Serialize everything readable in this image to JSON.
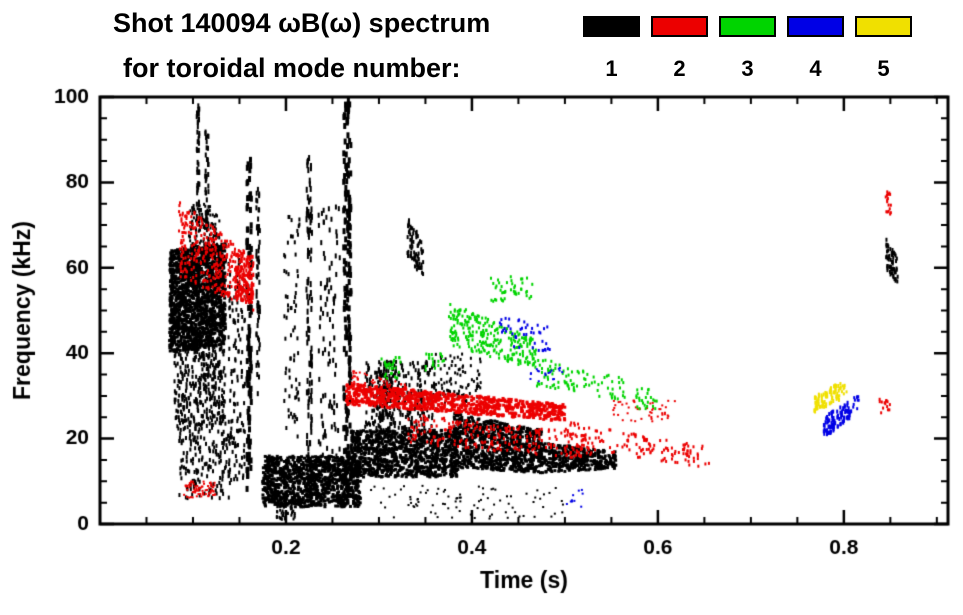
{
  "chart_data": {
    "type": "scatter",
    "title_line1": "Shot 140094 ωB(ω) spectrum",
    "title_line2": "for toroidal mode number:",
    "xlabel": "Time (s)",
    "ylabel": "Frequency (kHz)",
    "xlim": [
      0,
      0.912
    ],
    "ylim": [
      0,
      100
    ],
    "xticks": [
      0.2,
      0.4,
      0.6,
      0.8
    ],
    "xtick_labels": [
      "0.2",
      "0.4",
      "0.6",
      "0.8"
    ],
    "x_minor_step": 0.05,
    "yticks": [
      0,
      20,
      40,
      60,
      80,
      100
    ],
    "ytick_labels": [
      "0",
      "20",
      "40",
      "60",
      "80",
      "100"
    ],
    "y_minor_step": 5,
    "grid": false,
    "legend_position": "top-right",
    "legend": [
      {
        "label": "1",
        "color": "#000000"
      },
      {
        "label": "2",
        "color": "#ec0000"
      },
      {
        "label": "3",
        "color": "#00d400"
      },
      {
        "label": "4",
        "color": "#0000e6"
      },
      {
        "label": "5",
        "color": "#f0e000"
      }
    ],
    "series": [
      {
        "name": "n=1",
        "mode": 1,
        "color": "#000000",
        "clusters": [
          {
            "t": [
              0.075,
              0.135
            ],
            "f0": [
              40,
              64
            ],
            "f1": [
              42,
              66
            ],
            "n": 1600,
            "w": 3,
            "h": 3
          },
          {
            "t": [
              0.08,
              0.135
            ],
            "f0": [
              22,
              42
            ],
            "n": 350,
            "w": 2,
            "h": 4
          },
          {
            "t": [
              0.085,
              0.14
            ],
            "f0": [
              6,
              22
            ],
            "n": 160,
            "w": 2,
            "h": 4
          },
          {
            "t": [
              0.095,
              0.13
            ],
            "f0": [
              64,
              75
            ],
            "n": 120,
            "w": 2,
            "h": 3
          },
          {
            "t": [
              0.104,
              0.107
            ],
            "f0": [
              70,
              98
            ],
            "n": 50,
            "w": 2,
            "h": 5
          },
          {
            "t": [
              0.113,
              0.117
            ],
            "f0": [
              62,
              92
            ],
            "n": 45,
            "w": 2,
            "h": 5
          },
          {
            "t": [
              0.138,
              0.156
            ],
            "f0": [
              10,
              62
            ],
            "n": 130,
            "w": 2,
            "h": 4
          },
          {
            "t": [
              0.158,
              0.163
            ],
            "f0": [
              8,
              86
            ],
            "n": 110,
            "w": 3,
            "h": 6
          },
          {
            "t": [
              0.168,
              0.172
            ],
            "f0": [
              30,
              80
            ],
            "n": 60,
            "w": 2,
            "h": 5
          },
          {
            "t": [
              0.198,
              0.215
            ],
            "f0": [
              20,
              72
            ],
            "n": 70,
            "w": 2,
            "h": 4
          },
          {
            "t": [
              0.222,
              0.228
            ],
            "f0": [
              8,
              86
            ],
            "n": 100,
            "w": 2,
            "h": 6
          },
          {
            "t": [
              0.235,
              0.258
            ],
            "f0": [
              15,
              75
            ],
            "n": 90,
            "w": 2,
            "h": 5
          },
          {
            "t": [
              0.262,
              0.27
            ],
            "f0": [
              8,
              100
            ],
            "n": 160,
            "w": 3,
            "h": 6
          },
          {
            "t": [
              0.175,
              0.28
            ],
            "f0": [
              4,
              16
            ],
            "n": 1100,
            "w": 3,
            "h": 3
          },
          {
            "t": [
              0.19,
              0.21
            ],
            "f0": [
              1,
              5
            ],
            "n": 40,
            "w": 2,
            "h": 3
          },
          {
            "t": [
              0.27,
              0.385
            ],
            "f0": [
              11,
              22
            ],
            "n": 1000,
            "w": 3,
            "h": 3
          },
          {
            "t": [
              0.285,
              0.36
            ],
            "f0": [
              22,
              38
            ],
            "n": 260,
            "w": 2,
            "h": 4
          },
          {
            "t": [
              0.3,
              0.315
            ],
            "f0": [
              20,
              38
            ],
            "n": 80,
            "w": 2,
            "h": 4
          },
          {
            "t": [
              0.33,
              0.348
            ],
            "f0": [
              62,
              73
            ],
            "f1": [
              58,
              66
            ],
            "n": 70,
            "w": 2,
            "h": 4
          },
          {
            "t": [
              0.36,
              0.41
            ],
            "f0": [
              28,
              40
            ],
            "n": 90,
            "w": 2,
            "h": 3
          },
          {
            "t": [
              0.38,
              0.475
            ],
            "f0": [
              13,
              26
            ],
            "f1": [
              12,
              22
            ],
            "n": 800,
            "w": 3,
            "h": 3
          },
          {
            "t": [
              0.475,
              0.555
            ],
            "f0": [
              12,
              19
            ],
            "f1": [
              13,
              17
            ],
            "n": 350,
            "w": 3,
            "h": 3
          },
          {
            "t": [
              0.29,
              0.5
            ],
            "f0": [
              1,
              9
            ],
            "n": 90,
            "w": 2,
            "h": 2
          },
          {
            "t": [
              0.845,
              0.858
            ],
            "f0": [
              60,
              67
            ],
            "f1": [
              56,
              62
            ],
            "n": 55,
            "w": 2,
            "h": 4
          }
        ]
      },
      {
        "name": "n=2",
        "mode": 2,
        "color": "#ec0000",
        "clusters": [
          {
            "t": [
              0.085,
              0.165
            ],
            "f0": [
              58,
              76
            ],
            "f1": [
              50,
              62
            ],
            "n": 380,
            "w": 2,
            "h": 3
          },
          {
            "t": [
              0.09,
              0.125
            ],
            "f0": [
              6,
              10
            ],
            "n": 70,
            "w": 2,
            "h": 2
          },
          {
            "t": [
              0.145,
              0.165
            ],
            "f0": [
              52,
              64
            ],
            "n": 90,
            "w": 2,
            "h": 4
          },
          {
            "t": [
              0.265,
              0.5
            ],
            "f0": [
              28,
              33
            ],
            "f1": [
              24,
              28
            ],
            "n": 800,
            "w": 3,
            "h": 3
          },
          {
            "t": [
              0.27,
              0.33
            ],
            "f0": [
              31,
              36
            ],
            "f1": [
              29,
              33
            ],
            "n": 90,
            "w": 2,
            "h": 2
          },
          {
            "t": [
              0.33,
              0.53
            ],
            "f0": [
              19,
              26
            ],
            "f1": [
              15,
              21
            ],
            "n": 260,
            "w": 2,
            "h": 3
          },
          {
            "t": [
              0.5,
              0.655
            ],
            "f0": [
              18,
              24
            ],
            "f1": [
              13,
              18
            ],
            "n": 130,
            "w": 2,
            "h": 3
          },
          {
            "t": [
              0.55,
              0.62
            ],
            "f0": [
              24,
              29
            ],
            "n": 50,
            "w": 2,
            "h": 2
          },
          {
            "t": [
              0.838,
              0.85
            ],
            "f0": [
              26,
              30
            ],
            "n": 14,
            "w": 2,
            "h": 3
          },
          {
            "t": [
              0.845,
              0.852
            ],
            "f0": [
              72,
              78
            ],
            "n": 18,
            "w": 2,
            "h": 3
          }
        ]
      },
      {
        "name": "n=3",
        "mode": 3,
        "color": "#00d400",
        "clusters": [
          {
            "t": [
              0.375,
              0.47
            ],
            "f0": [
              42,
              52
            ],
            "f1": [
              36,
              43
            ],
            "n": 260,
            "w": 2,
            "h": 3
          },
          {
            "t": [
              0.42,
              0.465
            ],
            "f0": [
              52,
              58
            ],
            "n": 45,
            "w": 2,
            "h": 3
          },
          {
            "t": [
              0.47,
              0.565
            ],
            "f0": [
              32,
              39
            ],
            "f1": [
              29,
              34
            ],
            "n": 90,
            "w": 2,
            "h": 3
          },
          {
            "t": [
              0.3,
              0.325
            ],
            "f0": [
              34,
              39
            ],
            "n": 30,
            "w": 2,
            "h": 3
          },
          {
            "t": [
              0.35,
              0.37
            ],
            "f0": [
              36,
              40
            ],
            "n": 20,
            "w": 2,
            "h": 3
          },
          {
            "t": [
              0.575,
              0.6
            ],
            "f0": [
              27,
              32
            ],
            "n": 25,
            "w": 2,
            "h": 3
          }
        ]
      },
      {
        "name": "n=4",
        "mode": 4,
        "color": "#0000e6",
        "clusters": [
          {
            "t": [
              0.43,
              0.485
            ],
            "f0": [
              42,
              49
            ],
            "f1": [
              40,
              46
            ],
            "n": 45,
            "w": 2,
            "h": 3
          },
          {
            "t": [
              0.46,
              0.5
            ],
            "f0": [
              33,
              37
            ],
            "n": 18,
            "w": 2,
            "h": 2
          },
          {
            "t": [
              0.5,
              0.52
            ],
            "f0": [
              4,
              8
            ],
            "n": 10,
            "w": 2,
            "h": 2
          },
          {
            "t": [
              0.778,
              0.808
            ],
            "f0": [
              20,
              25
            ],
            "f1": [
              25,
              29
            ],
            "n": 90,
            "w": 2,
            "h": 4
          },
          {
            "t": [
              0.81,
              0.82
            ],
            "f0": [
              27,
              30
            ],
            "n": 10,
            "w": 2,
            "h": 3
          }
        ]
      },
      {
        "name": "n=5",
        "mode": 5,
        "color": "#f0e000",
        "clusters": [
          {
            "t": [
              0.768,
              0.795
            ],
            "f0": [
              26,
              30
            ],
            "f1": [
              29,
              33
            ],
            "n": 70,
            "w": 2,
            "h": 4
          },
          {
            "t": [
              0.795,
              0.805
            ],
            "f0": [
              30,
              33
            ],
            "n": 12,
            "w": 2,
            "h": 3
          }
        ]
      }
    ]
  }
}
